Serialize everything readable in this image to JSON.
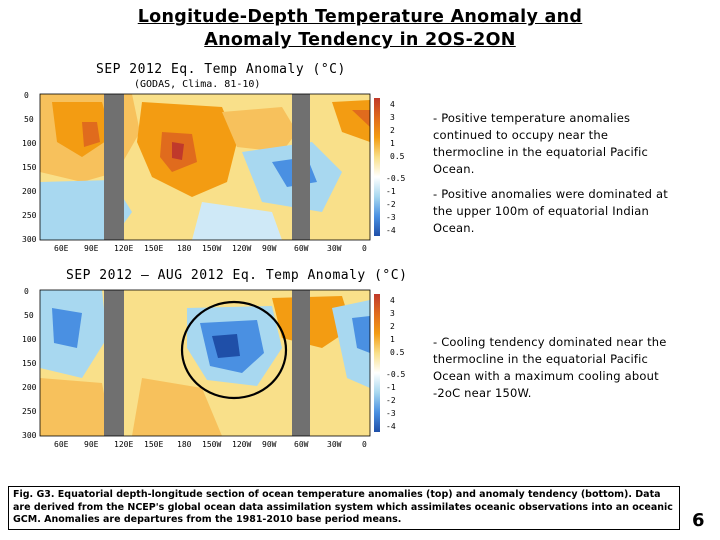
{
  "title": {
    "line1": "Longitude-Depth Temperature Anomaly and",
    "line2": "Anomaly Tendency in 2OS-2ON"
  },
  "top_panel": {
    "title": "SEP 2012 Eq. Temp Anomaly (°C)",
    "subtitle": "(GODAS, Clima. 81-10)",
    "depth_labels": [
      "0",
      "50",
      "100",
      "150",
      "200",
      "250",
      "300"
    ],
    "lon_labels": [
      "60E",
      "90E",
      "120E",
      "150E",
      "180",
      "150W",
      "120W",
      "90W",
      "60W",
      "30W",
      "0"
    ],
    "colorbar_labels": [
      "4",
      "3",
      "2",
      "1",
      "0.5",
      "-0.5",
      "-1",
      "-2",
      "-3",
      "-4"
    ]
  },
  "bottom_panel": {
    "title": "SEP 2012 — AUG 2012 Eq. Temp Anomaly (°C)",
    "depth_labels": [
      "0",
      "50",
      "100",
      "150",
      "200",
      "250",
      "300"
    ],
    "lon_labels": [
      "60E",
      "90E",
      "120E",
      "150E",
      "180",
      "150W",
      "120W",
      "90W",
      "60W",
      "30W",
      "0"
    ],
    "colorbar_labels": [
      "4",
      "3",
      "2",
      "1",
      "0.5",
      "-0.5",
      "-1",
      "-2",
      "-3",
      "-4"
    ]
  },
  "notes_top": [
    "- Positive temperature anomalies continued to occupy near the thermocline in the equatorial Pacific Ocean.",
    "- Positive anomalies were dominated at the upper 100m of equatorial Indian Ocean."
  ],
  "notes_bottom": [
    "- Cooling tendency dominated near the thermocline in the equatorial Pacific Ocean with a maximum cooling about -2oC near 150W."
  ],
  "caption": "Fig. G3. Equatorial depth-longitude section of ocean temperature anomalies (top) and anomaly tendency (bottom). Data are derived from the NCEP's global ocean data assimilation system which assimilates oceanic observations into an oceanic GCM. Anomalies are departures from the 1981-2010 base period means.",
  "page_number": "6",
  "colors": {
    "warm_strong": "#c0392b",
    "warm": "#f39c12",
    "warm_light": "#f9e08a",
    "cool_light": "#a8d8f0",
    "cool": "#4a90e2",
    "cool_strong": "#1f4fa8",
    "land_mask": "#707070"
  }
}
